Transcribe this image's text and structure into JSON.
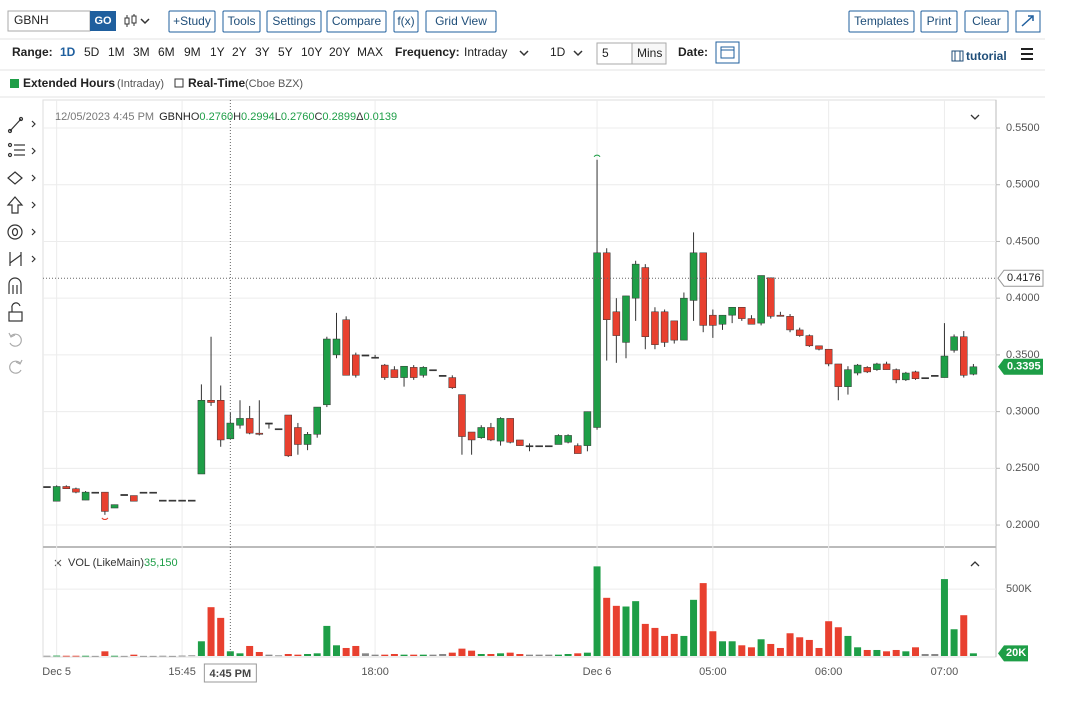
{
  "toolbar": {
    "symbol": "GBNH",
    "go": "GO",
    "buttons": [
      "+Study",
      "Tools",
      "Settings",
      "Compare",
      "f(x)",
      "Grid View"
    ],
    "right_buttons": [
      "Templates",
      "Print",
      "Clear"
    ]
  },
  "range_bar": {
    "range_label": "Range:",
    "ranges": [
      "1D",
      "5D",
      "1M",
      "3M",
      "6M",
      "9M",
      "1Y",
      "2Y",
      "3Y",
      "5Y",
      "10Y",
      "20Y",
      "MAX"
    ],
    "selected_range": 0,
    "frequency_label": "Frequency:",
    "frequency": "Intraday",
    "interval": "1D",
    "mins_value": 5,
    "mins_label": "Mins",
    "date_label": "Date:",
    "tutorial": "tutorial"
  },
  "options": {
    "extended": "Extended Hours",
    "extended_note": "(Intraday)",
    "realtime": "Real-Time",
    "realtime_note": "(Cboe BZX)"
  },
  "chart_data": {
    "type": "candlestick",
    "header": {
      "datetime": "12/05/2023 4:45 PM",
      "symbol": "GBNH",
      "fields": [
        {
          "key": "O",
          "value": {
            "value": 0.276,
            "label": "0.2760"
          }
        },
        {
          "key": "H",
          "value": {
            "value": 0.2994,
            "label": "0.2994"
          }
        },
        {
          "key": "L",
          "value": {
            "value": 0.276,
            "label": "0.2760"
          }
        },
        {
          "key": "C",
          "value": {
            "value": 0.2899,
            "label": "0.2899"
          }
        },
        {
          "key": "Δ",
          "value": {
            "value": 0.0139,
            "label": "0.0139"
          }
        }
      ]
    },
    "volume_header": {
      "name": "VOL (LikeMain)",
      "value": {
        "value": 35150,
        "label": "35,150"
      }
    },
    "categories": [
      null,
      "Dec 5",
      null,
      null,
      null,
      null,
      null,
      null,
      null,
      null,
      null,
      null,
      null,
      null,
      "15:45",
      null,
      null,
      null,
      null,
      null,
      null,
      null,
      null,
      null,
      null,
      null,
      null,
      null,
      null,
      null,
      null,
      null,
      null,
      null,
      "18:00",
      null,
      null,
      null,
      null,
      null,
      null,
      null,
      null,
      null,
      null,
      null,
      null,
      null,
      null,
      null,
      null,
      null,
      null,
      null,
      null,
      null,
      null,
      "Dec 6",
      null,
      null,
      null,
      null,
      null,
      null,
      null,
      null,
      null,
      null,
      null,
      "05:00",
      null,
      null,
      null,
      null,
      null,
      null,
      null,
      null,
      null,
      null,
      null,
      "06:00",
      null,
      null,
      null,
      null,
      null,
      null,
      null,
      null,
      null,
      null,
      null,
      "07:00",
      null,
      null,
      null
    ],
    "open": [
      0.234,
      0.221,
      0.234,
      0.232,
      0.222,
      0.229,
      0.229,
      0.215,
      0.227,
      0.226,
      0.229,
      0.229,
      0.222,
      0.222,
      0.222,
      0.222,
      0.245,
      0.31,
      0.31,
      0.276,
      0.288,
      0.294,
      0.281,
      0.29,
      0.285,
      0.297,
      0.286,
      0.271,
      0.28,
      0.306,
      0.35,
      0.381,
      0.35,
      0.35,
      0.348,
      0.341,
      0.337,
      0.33,
      0.339,
      0.332,
      0.337,
      0.332,
      0.33,
      0.315,
      0.282,
      0.277,
      0.286,
      0.274,
      0.294,
      0.275,
      0.27,
      0.27,
      0.27,
      0.271,
      0.273,
      0.27,
      0.27,
      0.286,
      0.44,
      0.388,
      0.361,
      0.4,
      0.427,
      0.388,
      0.388,
      0.38,
      0.363,
      0.398,
      0.44,
      0.385,
      0.377,
      0.385,
      0.392,
      0.382,
      0.378,
      0.418,
      0.385,
      0.384,
      0.372,
      0.367,
      0.358,
      0.355,
      0.342,
      0.322,
      0.334,
      0.339,
      0.337,
      0.342,
      0.337,
      0.328,
      0.335,
      0.33,
      0.332,
      0.33,
      0.354,
      0.366,
      0.333
    ],
    "high": [
      0.234,
      0.235,
      0.235,
      0.233,
      0.23,
      0.229,
      0.229,
      0.218,
      0.227,
      0.226,
      0.229,
      0.229,
      0.222,
      0.222,
      0.222,
      0.222,
      0.324,
      0.366,
      0.323,
      0.2994,
      0.31,
      0.305,
      0.31,
      0.29,
      0.285,
      0.297,
      0.29,
      0.282,
      0.304,
      0.366,
      0.387,
      0.384,
      0.352,
      0.35,
      0.35,
      0.342,
      0.34,
      0.34,
      0.341,
      0.34,
      0.337,
      0.332,
      0.332,
      0.315,
      0.282,
      0.288,
      0.29,
      0.295,
      0.294,
      0.275,
      0.272,
      0.27,
      0.27,
      0.28,
      0.28,
      0.272,
      0.3,
      0.522,
      0.444,
      0.4,
      0.402,
      0.433,
      0.43,
      0.392,
      0.39,
      0.38,
      0.405,
      0.458,
      0.44,
      0.39,
      0.385,
      0.392,
      0.392,
      0.385,
      0.42,
      0.418,
      0.388,
      0.386,
      0.374,
      0.368,
      0.358,
      0.355,
      0.342,
      0.34,
      0.342,
      0.34,
      0.343,
      0.344,
      0.338,
      0.335,
      0.336,
      0.33,
      0.332,
      0.378,
      0.368,
      0.371,
      0.342
    ],
    "low": [
      0.234,
      0.221,
      0.232,
      0.228,
      0.222,
      0.229,
      0.209,
      0.215,
      0.227,
      0.221,
      0.229,
      0.229,
      0.222,
      0.222,
      0.222,
      0.222,
      0.245,
      0.305,
      0.269,
      0.276,
      0.285,
      0.28,
      0.279,
      0.285,
      0.285,
      0.26,
      0.262,
      0.266,
      0.277,
      0.304,
      0.347,
      0.332,
      0.33,
      0.35,
      0.348,
      0.328,
      0.33,
      0.322,
      0.328,
      0.33,
      0.337,
      0.332,
      0.32,
      0.262,
      0.262,
      0.276,
      0.274,
      0.27,
      0.272,
      0.27,
      0.265,
      0.27,
      0.27,
      0.271,
      0.272,
      0.263,
      0.265,
      0.284,
      0.345,
      0.343,
      0.347,
      0.38,
      0.355,
      0.355,
      0.357,
      0.36,
      0.363,
      0.38,
      0.37,
      0.365,
      0.372,
      0.378,
      0.38,
      0.377,
      0.376,
      0.382,
      0.384,
      0.37,
      0.366,
      0.357,
      0.354,
      0.34,
      0.31,
      0.315,
      0.332,
      0.334,
      0.336,
      0.337,
      0.325,
      0.327,
      0.328,
      0.33,
      0.332,
      0.33,
      0.352,
      0.33,
      0.332
    ],
    "close": [
      0.234,
      0.234,
      0.232,
      0.229,
      0.229,
      0.229,
      0.212,
      0.218,
      0.227,
      0.221,
      0.229,
      0.229,
      0.222,
      0.222,
      0.222,
      0.222,
      0.31,
      0.308,
      0.275,
      0.2899,
      0.294,
      0.281,
      0.28,
      0.29,
      0.285,
      0.261,
      0.271,
      0.28,
      0.304,
      0.364,
      0.364,
      0.332,
      0.332,
      0.35,
      0.348,
      0.33,
      0.33,
      0.34,
      0.33,
      0.339,
      0.337,
      0.332,
      0.321,
      0.278,
      0.275,
      0.286,
      0.275,
      0.294,
      0.273,
      0.27,
      0.27,
      0.27,
      0.27,
      0.279,
      0.279,
      0.263,
      0.3,
      0.44,
      0.381,
      0.367,
      0.402,
      0.43,
      0.366,
      0.359,
      0.361,
      0.363,
      0.4,
      0.44,
      0.376,
      0.376,
      0.385,
      0.392,
      0.382,
      0.377,
      0.42,
      0.384,
      0.384,
      0.372,
      0.367,
      0.358,
      0.355,
      0.342,
      0.322,
      0.337,
      0.341,
      0.335,
      0.342,
      0.337,
      0.328,
      0.334,
      0.329,
      0.33,
      0.332,
      0.349,
      0.366,
      0.332,
      0.3395
    ],
    "volume": [
      2000,
      3000,
      2000,
      2000,
      2000,
      1000,
      35000,
      2000,
      1000,
      10000,
      1000,
      1000,
      2000,
      1000,
      3000,
      5000,
      110000,
      365000,
      285000,
      35150,
      20000,
      75000,
      30000,
      10000,
      5000,
      15000,
      10000,
      15000,
      20000,
      225000,
      80000,
      60000,
      75000,
      20000,
      10000,
      10000,
      15000,
      10000,
      10000,
      10000,
      10000,
      15000,
      25000,
      55000,
      40000,
      15000,
      15000,
      20000,
      25000,
      15000,
      10000,
      10000,
      10000,
      10000,
      15000,
      20000,
      25000,
      670000,
      435000,
      375000,
      370000,
      410000,
      240000,
      210000,
      150000,
      165000,
      150000,
      420000,
      545000,
      185000,
      110000,
      110000,
      80000,
      65000,
      125000,
      90000,
      60000,
      170000,
      140000,
      120000,
      60000,
      260000,
      215000,
      150000,
      65000,
      45000,
      45000,
      35000,
      45000,
      35000,
      65000,
      15000,
      15000,
      575000,
      200000,
      305000,
      20000
    ],
    "volume_last": {
      "value": 20000,
      "label": "20K"
    },
    "hover_index": 19,
    "hover_time": "4:45 PM",
    "crosshair_price": 0.4176,
    "ylim": [
      0.1824,
      0.5747
    ],
    "yticks": [
      {
        "value": 0.2,
        "label": "0.2000"
      },
      {
        "value": 0.25,
        "label": "0.2500"
      },
      {
        "value": 0.3,
        "label": "0.3000"
      },
      {
        "value": 0.35,
        "label": "0.3500"
      },
      {
        "value": 0.4,
        "label": "0.4000"
      },
      {
        "value": 0.45,
        "label": "0.4500"
      },
      {
        "value": 0.5,
        "label": "0.5000"
      },
      {
        "value": 0.55,
        "label": "0.5500"
      }
    ],
    "y2lim": [
      0,
      800000
    ],
    "y2ticks": [
      {
        "value": 500000,
        "label": "500K"
      }
    ],
    "up_color": "#1e9e47",
    "down_color": "#e8402f",
    "flat_color": "#333333",
    "grid": true
  }
}
